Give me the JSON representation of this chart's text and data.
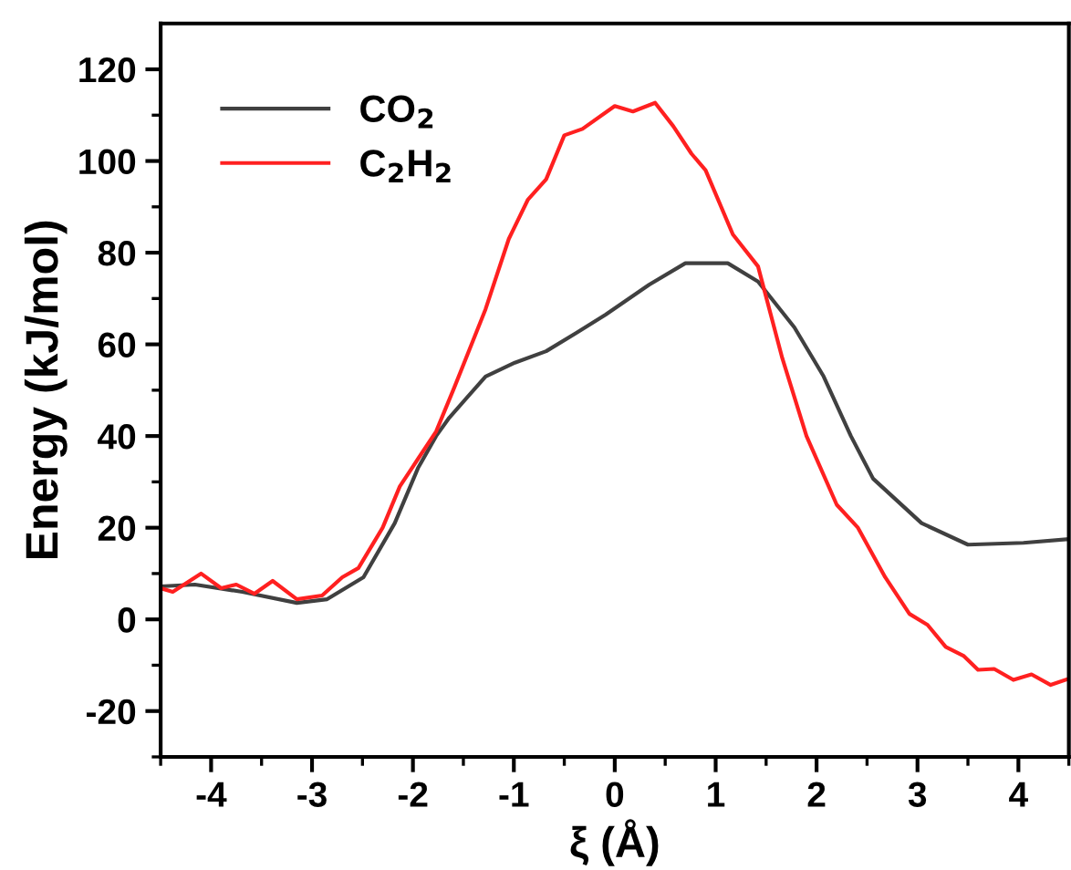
{
  "chart_data": {
    "type": "line",
    "xlabel": "ξ (Å)",
    "ylabel": "Energy (kJ/mol)",
    "xlim": [
      -4.5,
      4.5
    ],
    "xticks": [
      -4,
      -3,
      -2,
      -1,
      0,
      1,
      2,
      3,
      4
    ],
    "ylim": [
      -30,
      130
    ],
    "yticks": [
      -20,
      0,
      20,
      40,
      60,
      80,
      100,
      120
    ],
    "grid": false,
    "legend": "top left",
    "marker": "none",
    "line_style": "solid",
    "series": [
      {
        "name": "CO$_{2}$",
        "color": "#404040",
        "x": [
          -4.5,
          -4.16,
          -3.69,
          -3.15,
          -2.85,
          -2.49,
          -2.18,
          -1.95,
          -1.77,
          -1.64,
          -1.28,
          -0.99,
          -0.68,
          -0.38,
          -0.09,
          0.34,
          0.7,
          1.12,
          1.42,
          1.78,
          2.07,
          2.34,
          2.56,
          3.04,
          3.5,
          4.05,
          4.49
        ],
        "values": [
          7.2,
          7.6,
          6,
          3.6,
          4.4,
          9.2,
          21,
          33,
          40,
          44,
          53,
          56,
          58.5,
          62.5,
          66.5,
          73,
          77.7,
          77.7,
          73.7,
          63.7,
          53,
          40,
          30.7,
          21,
          16.3,
          16.7,
          17.5
        ]
      },
      {
        "name": "C$_{2}$H$_{2}$",
        "color": "#ff2020",
        "x": [
          -4.5,
          -4.38,
          -4.1,
          -3.9,
          -3.75,
          -3.57,
          -3.39,
          -3.15,
          -2.9,
          -2.7,
          -2.54,
          -2.3,
          -2.13,
          -1.95,
          -1.77,
          -1.59,
          -1.28,
          -1.05,
          -0.86,
          -0.68,
          -0.5,
          -0.32,
          0,
          0.18,
          0.4,
          0.58,
          0.76,
          0.9,
          1.17,
          1.42,
          1.66,
          1.9,
          2.2,
          2.41,
          2.68,
          2.92,
          3.1,
          3.28,
          3.46,
          3.6,
          3.76,
          3.95,
          4.13,
          4.32,
          4.49
        ],
        "values": [
          6.8,
          6,
          10,
          6.8,
          7.6,
          5.6,
          8.4,
          4.4,
          5.2,
          9.2,
          11.2,
          20,
          29,
          35,
          41,
          50.6,
          67.7,
          83,
          91.6,
          96,
          105.6,
          107,
          112,
          110.8,
          112.7,
          107.6,
          101.6,
          98,
          84,
          77,
          57,
          40,
          25,
          20,
          9.2,
          1.2,
          -1.2,
          -6,
          -8,
          -11,
          -10.8,
          -13.2,
          -12,
          -14.3,
          -13
        ]
      }
    ]
  }
}
